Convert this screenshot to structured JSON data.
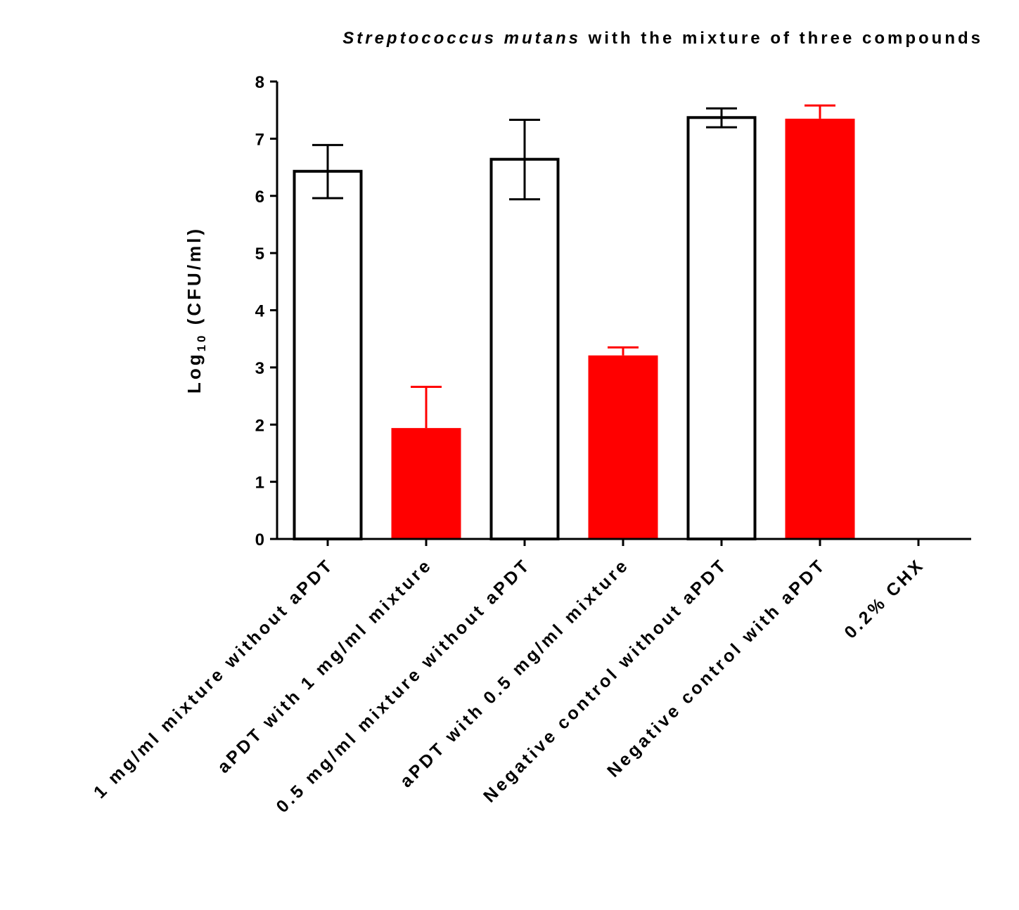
{
  "chart_data": {
    "type": "bar",
    "title": {
      "italic_part": "Streptococcus mutans",
      "rest": " with the mixture of three compounds"
    },
    "xlabel": "",
    "ylabel": {
      "main": "Log",
      "subscript": "10",
      "unit": " (CFU/ml)"
    },
    "ylim": [
      0,
      8
    ],
    "yticks": [
      0,
      1,
      2,
      3,
      4,
      5,
      6,
      7,
      8
    ],
    "grid": false,
    "legend": "none",
    "categories": [
      "1 mg/ml mixture without aPDT",
      "aPDT with 1 mg/ml mixture",
      "0.5 mg/ml mixture without aPDT",
      "aPDT with 0.5 mg/ml mixture",
      "Negative control without aPDT",
      "Negative control with aPDT",
      "0.2% CHX"
    ],
    "values": [
      6.43,
      1.94,
      6.64,
      3.21,
      7.37,
      7.35,
      0
    ],
    "error_upper": [
      6.89,
      2.66,
      7.33,
      3.35,
      7.53,
      7.58,
      null
    ],
    "error_lower": [
      5.96,
      null,
      5.94,
      null,
      7.2,
      null,
      null
    ],
    "bar_styles": [
      "outline",
      "filled",
      "outline",
      "filled",
      "outline",
      "filled",
      "none"
    ],
    "colors": {
      "outline_bar_stroke": "#000000",
      "outline_bar_fill": "#ffffff",
      "filled_bar": "#ff0000",
      "axis": "#000000",
      "text": "#000000"
    }
  }
}
